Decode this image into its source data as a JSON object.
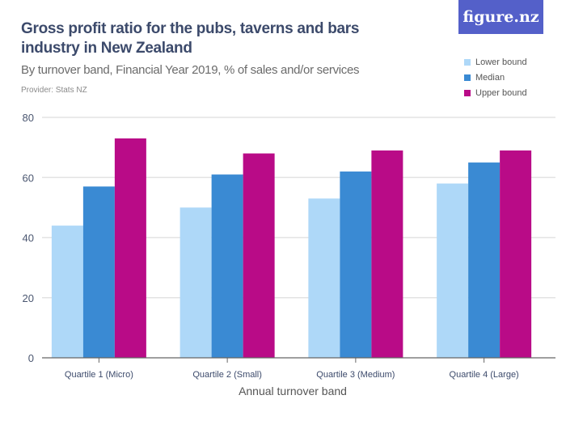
{
  "header": {
    "title": "Gross profit ratio for the pubs, taverns and bars industry in New Zealand",
    "subtitle": "By turnover band, Financial Year 2019, % of sales and/or services",
    "provider": "Provider: Stats NZ",
    "logo_text": "figure.nz"
  },
  "colors": {
    "lower": "#aed8f8",
    "median": "#3a8ad3",
    "upper": "#b90b87",
    "logo_bg": "#5460c9"
  },
  "chart_data": {
    "type": "bar",
    "title": "Gross profit ratio for the pubs, taverns and bars industry in New Zealand",
    "subtitle": "By turnover band, Financial Year 2019, % of sales and/or services",
    "xlabel": "Annual turnover band",
    "ylabel": "",
    "ylim": [
      0,
      80
    ],
    "yticks": [
      0,
      20,
      40,
      60,
      80
    ],
    "grid": true,
    "legend_position": "top-right",
    "categories": [
      "Quartile 1 (Micro)",
      "Quartile 2 (Small)",
      "Quartile 3 (Medium)",
      "Quartile 4 (Large)"
    ],
    "series": [
      {
        "name": "Lower bound",
        "color": "#aed8f8",
        "values": [
          44,
          50,
          53,
          58
        ]
      },
      {
        "name": "Median",
        "color": "#3a8ad3",
        "values": [
          57,
          61,
          62,
          65
        ]
      },
      {
        "name": "Upper bound",
        "color": "#b90b87",
        "values": [
          73,
          68,
          69,
          69
        ]
      }
    ]
  }
}
